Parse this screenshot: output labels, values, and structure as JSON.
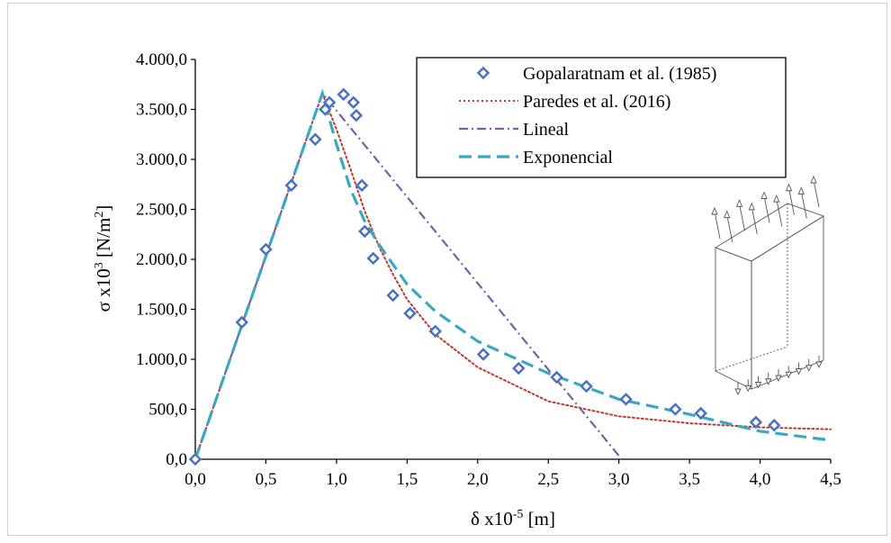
{
  "chart_data": {
    "type": "line",
    "xlabel": "δ x10",
    "xlabel_exp": "-5",
    "xlabel_unit": " [m]",
    "ylabel": "σ x10",
    "ylabel_exp": "3",
    "ylabel_unit": " [N/m",
    "ylabel_unit_exp": "2",
    "ylabel_close": "]",
    "xlim": [
      0,
      4.5
    ],
    "ylim": [
      0,
      4000
    ],
    "x_ticks": [
      "0,0",
      "0,5",
      "1,0",
      "1,5",
      "2,0",
      "2,5",
      "3,0",
      "3,5",
      "4,0",
      "4,5"
    ],
    "y_ticks": [
      "0,0",
      "500,0",
      "1.000,0",
      "1.500,0",
      "2.000,0",
      "2.500,0",
      "3.000,0",
      "3.500,0",
      "4.000,0"
    ],
    "grid": false,
    "legend_position": "top-right",
    "series": [
      {
        "name": "Gopalaratnam et al. (1985)",
        "style": "markers",
        "marker": "diamond",
        "color": "#4a72c0",
        "points": [
          [
            0.0,
            0
          ],
          [
            0.33,
            1370
          ],
          [
            0.5,
            2100
          ],
          [
            0.68,
            2740
          ],
          [
            0.85,
            3200
          ],
          [
            0.92,
            3500
          ],
          [
            0.95,
            3570
          ],
          [
            1.05,
            3650
          ],
          [
            1.12,
            3570
          ],
          [
            1.14,
            3440
          ],
          [
            1.18,
            2740
          ],
          [
            1.2,
            2280
          ],
          [
            1.26,
            2010
          ],
          [
            1.4,
            1640
          ],
          [
            1.52,
            1460
          ],
          [
            1.7,
            1280
          ],
          [
            2.04,
            1050
          ],
          [
            2.29,
            910
          ],
          [
            2.56,
            820
          ],
          [
            2.77,
            730
          ],
          [
            3.05,
            600
          ],
          [
            3.4,
            500
          ],
          [
            3.58,
            460
          ],
          [
            3.97,
            370
          ],
          [
            4.1,
            340
          ]
        ]
      },
      {
        "name": "Paredes et al. (2016)",
        "style": "dotted",
        "color": "#c0392b",
        "points": [
          [
            0.0,
            0
          ],
          [
            0.9,
            3660
          ],
          [
            1.0,
            3300
          ],
          [
            1.1,
            2900
          ],
          [
            1.2,
            2480
          ],
          [
            1.3,
            2130
          ],
          [
            1.4,
            1850
          ],
          [
            1.5,
            1600
          ],
          [
            1.7,
            1250
          ],
          [
            2.0,
            920
          ],
          [
            2.5,
            580
          ],
          [
            3.0,
            430
          ],
          [
            3.5,
            360
          ],
          [
            4.0,
            320
          ],
          [
            4.5,
            300
          ]
        ]
      },
      {
        "name": "Lineal",
        "style": "dashdot",
        "color": "#7b5ea7",
        "points": [
          [
            0.0,
            0
          ],
          [
            0.9,
            3660
          ],
          [
            3.02,
            0
          ]
        ]
      },
      {
        "name": "Exponencial",
        "style": "dashed",
        "color": "#3aa8c1",
        "points": [
          [
            0.0,
            0
          ],
          [
            0.9,
            3660
          ],
          [
            1.0,
            3150
          ],
          [
            1.1,
            2700
          ],
          [
            1.2,
            2380
          ],
          [
            1.3,
            2150
          ],
          [
            1.5,
            1750
          ],
          [
            1.7,
            1480
          ],
          [
            2.0,
            1180
          ],
          [
            2.5,
            860
          ],
          [
            3.0,
            600
          ],
          [
            3.5,
            450
          ],
          [
            4.0,
            280
          ],
          [
            4.5,
            190
          ]
        ]
      }
    ]
  }
}
